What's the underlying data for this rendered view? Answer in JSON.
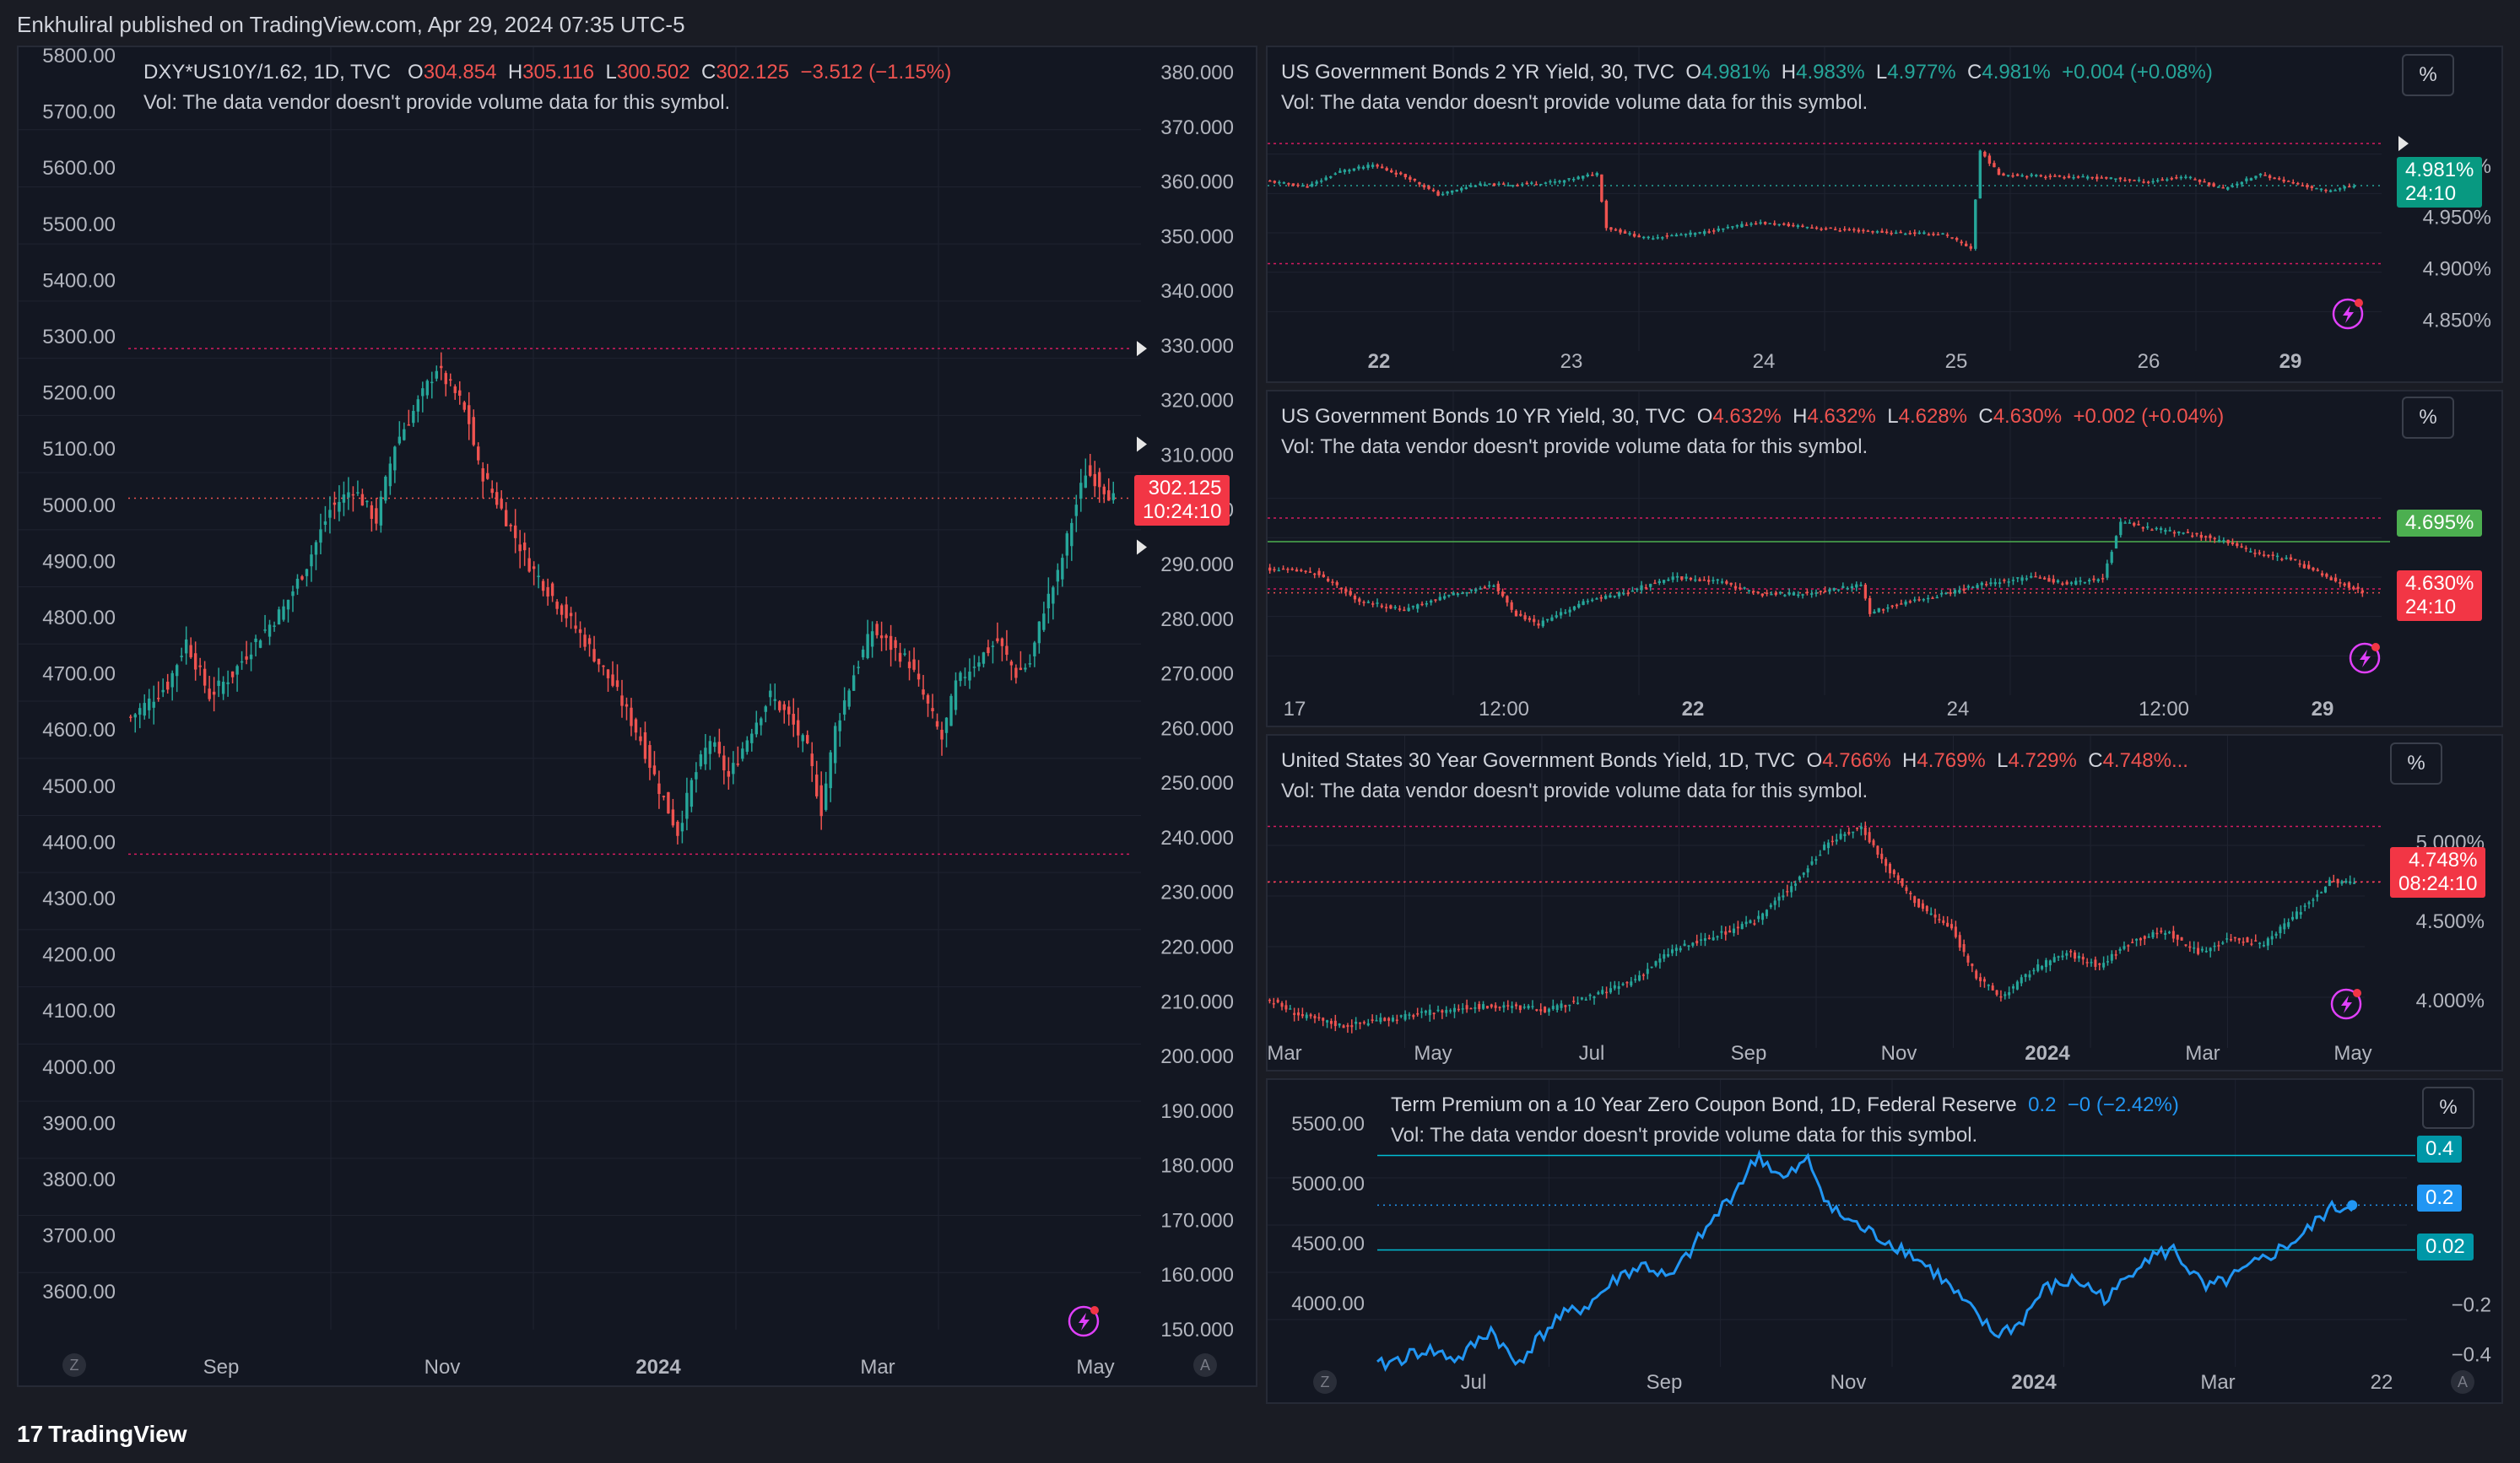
{
  "header": {
    "published": "Enkhuliral published on TradingView.com, Apr 29, 2024 07:35 UTC-5"
  },
  "footer": {
    "brand": "TradingView",
    "logo": "tv-logo-icon"
  },
  "colors": {
    "up": "#26a69a",
    "down": "#ef5350",
    "line": "#2196f3",
    "bg": "#131722",
    "green_line": "#4caf50",
    "teal_band": "#00bcd4"
  },
  "panels": {
    "left": {
      "legend": {
        "symbol": "DXY*US10Y/1.62, 1D, TVC",
        "o_label": "O",
        "o": "304.854",
        "h_label": "H",
        "h": "305.116",
        "l_label": "L",
        "l": "300.502",
        "c_label": "C",
        "c": "302.125",
        "chg": "−3.512 (−1.15%)",
        "vol": "Vol: The data vendor doesn't provide volume data for this symbol."
      },
      "price_tag": "302.125",
      "countdown": "10:24:10",
      "z_button": "Z",
      "a_button": "A"
    },
    "p2": {
      "legend": {
        "symbol": "US Government Bonds 2 YR Yield, 30, TVC",
        "o_label": "O",
        "o": "4.981%",
        "h_label": "H",
        "h": "4.983%",
        "l_label": "L",
        "l": "4.977%",
        "c_label": "C",
        "c": "4.981%",
        "chg": "+0.004 (+0.08%)",
        "vol": "Vol: The data vendor doesn't provide volume data for this symbol."
      },
      "pct": "%",
      "price_tag": "4.981%",
      "countdown": "24:10"
    },
    "p3": {
      "legend": {
        "symbol": "US Government Bonds 10 YR Yield, 30, TVC",
        "o_label": "O",
        "o": "4.632%",
        "h_label": "H",
        "h": "4.632%",
        "l_label": "L",
        "l": "4.628%",
        "c_label": "C",
        "c": "4.630%",
        "chg": "+0.002 (+0.04%)",
        "vol": "Vol: The data vendor doesn't provide volume data for this symbol."
      },
      "pct": "%",
      "level_tag": "4.695%",
      "price_tag": "4.630%",
      "countdown": "24:10"
    },
    "p4": {
      "legend": {
        "symbol": "United States 30 Year Government Bonds Yield, 1D, TVC",
        "o_label": "O",
        "o": "4.766%",
        "h_label": "H",
        "h": "4.769%",
        "l_label": "L",
        "l": "4.729%",
        "c_label": "C",
        "c": "4.748%...",
        "vol": "Vol: The data vendor doesn't provide volume data for this symbol."
      },
      "pct": "%",
      "price_tag": "4.748%",
      "countdown": "08:24:10"
    },
    "p5": {
      "legend": {
        "symbol": "Term Premium on a 10 Year Zero Coupon Bond, 1D, Federal Reserve",
        "value": "0.2",
        "chg": "−0 (−2.42%)",
        "vol": "Vol: The data vendor doesn't provide volume data for this symbol."
      },
      "pct": "%",
      "tag_top": "0.4",
      "tag_mid": "0.2",
      "tag_low": "0.02",
      "z_button": "Z",
      "a_button": "A"
    }
  },
  "chart_data": [
    {
      "type": "candlestick",
      "title": "DXY*US10Y/1.62, 1D, TVC",
      "x_ticks": [
        "Sep",
        "Nov",
        "2024",
        "Mar",
        "May"
      ],
      "y_left_ticks": [
        "5800.00",
        "5700.00",
        "5600.00",
        "5500.00",
        "5400.00",
        "5300.00",
        "5200.00",
        "5100.00",
        "5000.00",
        "4900.00",
        "4800.00",
        "4700.00",
        "4600.00",
        "4500.00",
        "4400.00",
        "4300.00",
        "4200.00",
        "4100.00",
        "4000.00",
        "3900.00",
        "3800.00",
        "3700.00",
        "3600.00"
      ],
      "y_right_ticks": [
        "380.000",
        "370.000",
        "360.000",
        "350.000",
        "340.000",
        "330.000",
        "320.000",
        "310.000",
        "300.000",
        "290.000",
        "280.000",
        "270.000",
        "260.000",
        "250.000",
        "240.000",
        "230.000",
        "220.000",
        "210.000",
        "200.000",
        "190.000",
        "180.000",
        "170.000",
        "160.000",
        "150.000"
      ],
      "ylim": [
        150,
        380
      ],
      "high_line": 329.5,
      "low_line": 237.0,
      "anchors": [
        [
          0,
          262
        ],
        [
          8,
          268
        ],
        [
          12,
          276
        ],
        [
          17,
          266
        ],
        [
          22,
          270
        ],
        [
          27,
          276
        ],
        [
          33,
          282
        ],
        [
          38,
          290
        ],
        [
          43,
          300
        ],
        [
          48,
          304
        ],
        [
          53,
          298
        ],
        [
          57,
          312
        ],
        [
          61,
          318
        ],
        [
          66,
          326
        ],
        [
          71,
          320
        ],
        [
          73,
          316
        ],
        [
          75,
          308
        ],
        [
          80,
          300
        ],
        [
          86,
          290
        ],
        [
          92,
          283
        ],
        [
          98,
          276
        ],
        [
          104,
          268
        ],
        [
          110,
          258
        ],
        [
          114,
          249
        ],
        [
          118,
          241
        ],
        [
          121,
          250
        ],
        [
          125,
          258
        ],
        [
          129,
          251
        ],
        [
          134,
          260
        ],
        [
          138,
          266
        ],
        [
          142,
          262
        ],
        [
          146,
          256
        ],
        [
          149,
          245
        ],
        [
          152,
          260
        ],
        [
          156,
          270
        ],
        [
          160,
          278
        ],
        [
          164,
          275
        ],
        [
          168,
          272
        ],
        [
          172,
          264
        ],
        [
          175,
          258
        ],
        [
          178,
          268
        ],
        [
          182,
          272
        ],
        [
          187,
          276
        ],
        [
          191,
          270
        ],
        [
          194,
          272
        ],
        [
          197,
          282
        ],
        [
          200,
          288
        ],
        [
          203,
          298
        ],
        [
          206,
          307
        ],
        [
          209,
          305
        ],
        [
          212,
          302
        ]
      ],
      "last": 302.125
    },
    {
      "type": "candlestick",
      "title": "US Government Bonds 2 YR Yield, 30, TVC",
      "x_ticks": [
        "22",
        "23",
        "24",
        "25",
        "26",
        "29"
      ],
      "y_ticks": [
        "5.000%",
        "4.950%",
        "4.900%",
        "4.850%"
      ],
      "ylim": [
        4.82,
        5.05
      ],
      "high_line": 5.022,
      "low_line": 4.905,
      "anchors": [
        [
          0,
          4.985
        ],
        [
          8,
          4.98
        ],
        [
          15,
          4.995
        ],
        [
          22,
          5.001
        ],
        [
          30,
          4.988
        ],
        [
          36,
          4.972
        ],
        [
          44,
          4.982
        ],
        [
          52,
          4.982
        ],
        [
          62,
          4.985
        ],
        [
          70,
          4.993
        ],
        [
          72,
          4.94
        ],
        [
          80,
          4.93
        ],
        [
          92,
          4.935
        ],
        [
          104,
          4.945
        ],
        [
          112,
          4.942
        ],
        [
          122,
          4.938
        ],
        [
          134,
          4.935
        ],
        [
          144,
          4.934
        ],
        [
          150,
          4.92
        ],
        [
          152,
          5.015
        ],
        [
          156,
          4.992
        ],
        [
          168,
          4.99
        ],
        [
          180,
          4.988
        ],
        [
          188,
          4.985
        ],
        [
          196,
          4.99
        ],
        [
          204,
          4.978
        ],
        [
          212,
          4.992
        ],
        [
          220,
          4.982
        ],
        [
          226,
          4.976
        ],
        [
          232,
          4.981
        ]
      ],
      "last": 4.981
    },
    {
      "type": "candlestick",
      "title": "US Government Bonds 10 YR Yield, 30, TVC",
      "x_ticks": [
        "17",
        "12:00",
        "22",
        "24",
        "12:00",
        "29"
      ],
      "level": 4.695,
      "ylim": [
        4.5,
        4.8
      ],
      "high_line": 4.725,
      "low_line": 4.635,
      "anchors": [
        [
          0,
          4.66
        ],
        [
          10,
          4.656
        ],
        [
          20,
          4.62
        ],
        [
          30,
          4.608
        ],
        [
          40,
          4.628
        ],
        [
          50,
          4.64
        ],
        [
          55,
          4.602
        ],
        [
          60,
          4.59
        ],
        [
          70,
          4.618
        ],
        [
          80,
          4.632
        ],
        [
          90,
          4.65
        ],
        [
          100,
          4.645
        ],
        [
          110,
          4.628
        ],
        [
          120,
          4.63
        ],
        [
          132,
          4.64
        ],
        [
          134,
          4.605
        ],
        [
          140,
          4.615
        ],
        [
          150,
          4.628
        ],
        [
          160,
          4.642
        ],
        [
          170,
          4.65
        ],
        [
          178,
          4.642
        ],
        [
          186,
          4.648
        ],
        [
          190,
          4.72
        ],
        [
          196,
          4.712
        ],
        [
          204,
          4.706
        ],
        [
          212,
          4.698
        ],
        [
          220,
          4.68
        ],
        [
          228,
          4.672
        ],
        [
          236,
          4.65
        ],
        [
          244,
          4.632
        ]
      ],
      "last": 4.63
    },
    {
      "type": "candlestick",
      "title": "United States 30 Year Government Bonds Yield, 1D, TVC",
      "x_ticks": [
        "Mar",
        "May",
        "Jul",
        "Sep",
        "Nov",
        "2024",
        "Mar",
        "May"
      ],
      "y_ticks": [
        "5.000%",
        "4.500%",
        "4.000%"
      ],
      "ylim": [
        3.7,
        5.3
      ],
      "high_line": 5.1,
      "low_line": 4.75,
      "anchors": [
        [
          0,
          4.0
        ],
        [
          8,
          3.9
        ],
        [
          18,
          3.84
        ],
        [
          28,
          3.88
        ],
        [
          38,
          3.92
        ],
        [
          48,
          3.96
        ],
        [
          58,
          3.96
        ],
        [
          68,
          3.94
        ],
        [
          78,
          4.02
        ],
        [
          88,
          4.12
        ],
        [
          98,
          4.32
        ],
        [
          108,
          4.4
        ],
        [
          118,
          4.5
        ],
        [
          128,
          4.75
        ],
        [
          136,
          5.0
        ],
        [
          144,
          5.1
        ],
        [
          150,
          4.85
        ],
        [
          158,
          4.6
        ],
        [
          166,
          4.45
        ],
        [
          172,
          4.15
        ],
        [
          178,
          4.02
        ],
        [
          186,
          4.2
        ],
        [
          194,
          4.3
        ],
        [
          202,
          4.22
        ],
        [
          210,
          4.38
        ],
        [
          218,
          4.44
        ],
        [
          226,
          4.3
        ],
        [
          234,
          4.4
        ],
        [
          242,
          4.35
        ],
        [
          250,
          4.55
        ],
        [
          258,
          4.75
        ],
        [
          264,
          4.748
        ]
      ],
      "last": 4.748
    },
    {
      "type": "line",
      "title": "Term Premium on a 10 Year Zero Coupon Bond, 1D, Federal Reserve",
      "x_ticks": [
        "Jul",
        "Sep",
        "Nov",
        "2024",
        "Mar",
        "22"
      ],
      "y_left_ticks": [
        "5500.00",
        "5000.00",
        "4500.00",
        "4000.00"
      ],
      "y_right_ticks": [
        "−0.2",
        "−0.4"
      ],
      "ylim": [
        -0.45,
        0.5
      ],
      "bands": [
        0.4,
        0.02
      ],
      "anchors": [
        [
          0,
          -0.45
        ],
        [
          12,
          -0.38
        ],
        [
          20,
          -0.42
        ],
        [
          28,
          -0.3
        ],
        [
          34,
          -0.44
        ],
        [
          44,
          -0.26
        ],
        [
          52,
          -0.2
        ],
        [
          60,
          -0.08
        ],
        [
          66,
          -0.04
        ],
        [
          72,
          -0.1
        ],
        [
          80,
          0.08
        ],
        [
          88,
          0.26
        ],
        [
          94,
          0.4
        ],
        [
          100,
          0.3
        ],
        [
          106,
          0.38
        ],
        [
          112,
          0.18
        ],
        [
          120,
          0.1
        ],
        [
          130,
          0.02
        ],
        [
          138,
          -0.08
        ],
        [
          146,
          -0.22
        ],
        [
          152,
          -0.32
        ],
        [
          158,
          -0.28
        ],
        [
          164,
          -0.14
        ],
        [
          172,
          -0.1
        ],
        [
          180,
          -0.18
        ],
        [
          188,
          -0.02
        ],
        [
          196,
          0.02
        ],
        [
          204,
          -0.14
        ],
        [
          212,
          -0.08
        ],
        [
          220,
          0.0
        ],
        [
          228,
          0.08
        ],
        [
          234,
          0.18
        ],
        [
          240,
          0.2
        ]
      ],
      "last": 0.2
    }
  ]
}
